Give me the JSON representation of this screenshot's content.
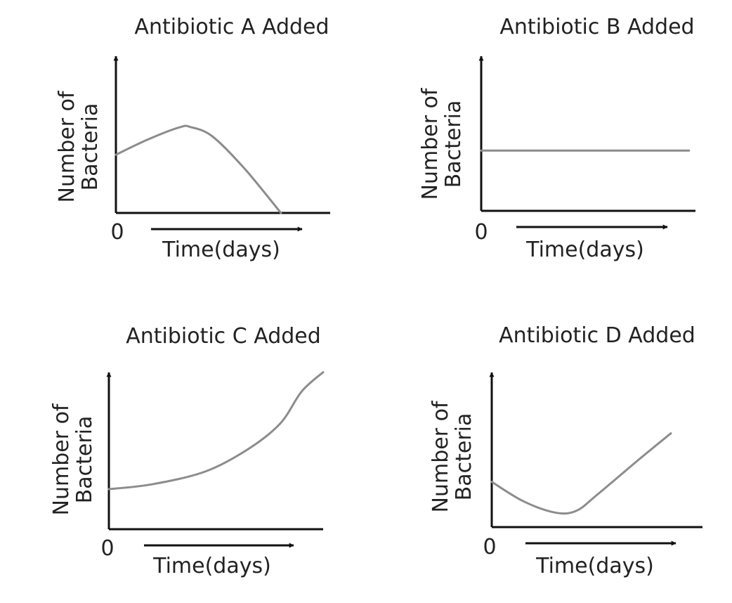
{
  "chart_data": [
    {
      "type": "line",
      "title": "Antibiotic A Added",
      "ylabel_line1": "Number of",
      "ylabel_line2": "Bacteria",
      "xlabel": "Time(days)",
      "origin_label": "0",
      "xlim": [
        0,
        10
      ],
      "ylim": [
        0,
        10
      ],
      "series": [
        {
          "x": [
            0,
            1.5,
            3,
            3.5,
            4.5,
            6,
            7.7
          ],
          "y": [
            3.8,
            4.8,
            5.6,
            5.6,
            5.0,
            2.9,
            0.0
          ]
        }
      ]
    },
    {
      "type": "line",
      "title": "Antibiotic B Added",
      "ylabel_line1": "Number of",
      "ylabel_line2": "Bacteria",
      "xlabel": "Time(days)",
      "origin_label": "0",
      "xlim": [
        0,
        10
      ],
      "ylim": [
        0,
        10
      ],
      "series": [
        {
          "x": [
            0,
            9.7
          ],
          "y": [
            3.9,
            3.9
          ]
        }
      ]
    },
    {
      "type": "line",
      "title": "Antibiotic C Added",
      "ylabel_line1": "Number of",
      "ylabel_line2": "Bacteria",
      "xlabel": "Time(days)",
      "origin_label": "0",
      "xlim": [
        0,
        10
      ],
      "ylim": [
        0,
        10
      ],
      "series": [
        {
          "x": [
            0,
            2,
            4.5,
            6.5,
            8,
            9,
            10
          ],
          "y": [
            2.5,
            2.8,
            3.6,
            5.0,
            6.6,
            8.6,
            9.8
          ]
        }
      ]
    },
    {
      "type": "line",
      "title": "Antibiotic D Added",
      "ylabel_line1": "Number of",
      "ylabel_line2": "Bacteria",
      "xlabel": "Time(days)",
      "origin_label": "0",
      "xlim": [
        0,
        10
      ],
      "ylim": [
        0,
        10
      ],
      "series": [
        {
          "x": [
            0,
            1.5,
            3,
            4,
            5,
            7,
            8.5
          ],
          "y": [
            2.8,
            1.6,
            0.9,
            1.0,
            2.0,
            4.2,
            5.8
          ]
        }
      ]
    }
  ]
}
